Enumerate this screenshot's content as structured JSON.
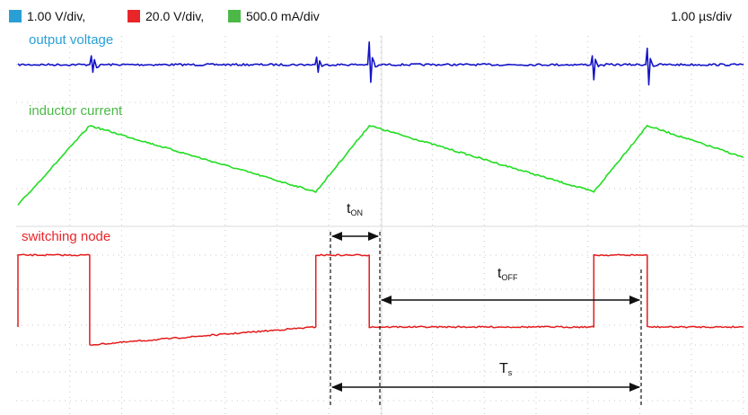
{
  "header": {
    "legend": [
      {
        "label": "1.00 V/div,",
        "color": "#2a9fd6"
      },
      {
        "label": "20.0 V/div,",
        "color": "#e8262a"
      },
      {
        "label": "500.0 mA/div",
        "color": "#4cb847"
      }
    ],
    "timebase": "1.00 µs/div"
  },
  "colors": {
    "output_voltage": "#1414c8",
    "inductor_current": "#22dd22",
    "switching_node": "#e31b1b",
    "output_voltage_label": "#2a9fd6",
    "inductor_current_label": "#4cb847",
    "switching_node_label": "#e8262a"
  },
  "chart_data": {
    "type": "line",
    "series": [
      {
        "name": "output voltage",
        "x": [
          0.0,
          0.94,
          0.96,
          0.98,
          1.0,
          1.03,
          1.1,
          3.89,
          3.91,
          3.93,
          3.95,
          3.98,
          4.05,
          4.58,
          4.6,
          4.62,
          4.64,
          4.68,
          4.75,
          7.5,
          7.52,
          7.54,
          7.56,
          7.6,
          7.7,
          8.22,
          8.24,
          8.26,
          8.28,
          8.32,
          8.4,
          9.5
        ],
        "y": [
          0.0,
          0.0,
          0.35,
          -0.3,
          0.2,
          -0.1,
          0.0,
          0.0,
          0.3,
          -0.3,
          0.15,
          -0.05,
          0.0,
          0.0,
          0.9,
          -0.7,
          0.3,
          -0.1,
          0.0,
          0.0,
          0.35,
          -0.6,
          0.2,
          -0.05,
          0.0,
          0.0,
          0.65,
          -0.8,
          0.25,
          -0.05,
          0.0,
          0.0
        ]
      },
      {
        "name": "inductor current",
        "x": [
          0.0,
          0.94,
          3.9,
          4.6,
          7.54,
          8.24,
          9.5
        ],
        "y": [
          0.3,
          1.8,
          0.55,
          1.8,
          0.55,
          1.8,
          1.2
        ]
      },
      {
        "name": "switching node",
        "x": [
          0.0,
          0.0,
          0.94,
          0.94,
          3.9,
          3.9,
          4.6,
          4.6,
          7.54,
          7.54,
          8.24,
          8.24,
          9.5
        ],
        "y": [
          0.0,
          1.0,
          1.0,
          -0.25,
          0.0,
          1.0,
          1.0,
          0.0,
          0.0,
          1.0,
          1.0,
          0.0,
          0.0
        ]
      }
    ],
    "trace_labels": [
      "output voltage",
      "inductor current",
      "switching node"
    ],
    "annotations": {
      "t_on": {
        "main": "t",
        "sub": "ON",
        "from": 3.9,
        "to": 4.6
      },
      "t_off": {
        "main": "t",
        "sub": "OFF",
        "from": 4.6,
        "to": 7.54
      },
      "t_s": {
        "main": "T",
        "sub": "s",
        "from": 3.9,
        "to": 7.54
      }
    },
    "grid": true,
    "xlim": [
      0,
      9.5
    ]
  }
}
